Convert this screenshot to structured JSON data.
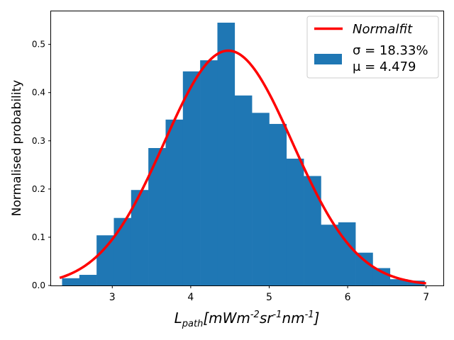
{
  "chart_data": {
    "type": "bar",
    "xlabel": "L_{path}[mWm^{-2}sr^{-1}nm^{-1}]",
    "ylabel": "Normalised probability",
    "xlim": [
      2.22,
      7.22
    ],
    "ylim": [
      0.0,
      0.57
    ],
    "x_ticks": [
      3,
      4,
      5,
      6,
      7
    ],
    "y_ticks": [
      0.0,
      0.1,
      0.2,
      0.3,
      0.4,
      0.5
    ],
    "grid": false,
    "legend": {
      "placement": "top-right",
      "entries": [
        {
          "label": "Normalfit",
          "kind": "line",
          "color": "#ff0000"
        },
        {
          "label_lines": [
            "σ = 18.33%",
            "μ = 4.479"
          ],
          "kind": "patch",
          "color": "#1f77b4"
        }
      ]
    },
    "histogram": {
      "color": "#1f77b4",
      "bin_edges": [
        2.36,
        2.58,
        2.8,
        3.02,
        3.24,
        3.46,
        3.68,
        3.9,
        4.12,
        4.34,
        4.56,
        4.78,
        5.0,
        5.22,
        5.44,
        5.66,
        5.88,
        6.1,
        6.32,
        6.54,
        6.76,
        6.98
      ],
      "values": [
        0.015,
        0.022,
        0.104,
        0.14,
        0.198,
        0.285,
        0.344,
        0.444,
        0.467,
        0.545,
        0.394,
        0.358,
        0.335,
        0.263,
        0.227,
        0.126,
        0.131,
        0.068,
        0.036,
        0.013,
        0.01
      ]
    },
    "fit": {
      "name": "Normalfit",
      "color": "#ff0000",
      "x_start": 2.33,
      "x_end": 7.0,
      "mu": 4.479,
      "peak": 0.487,
      "width": 0.82
    }
  }
}
